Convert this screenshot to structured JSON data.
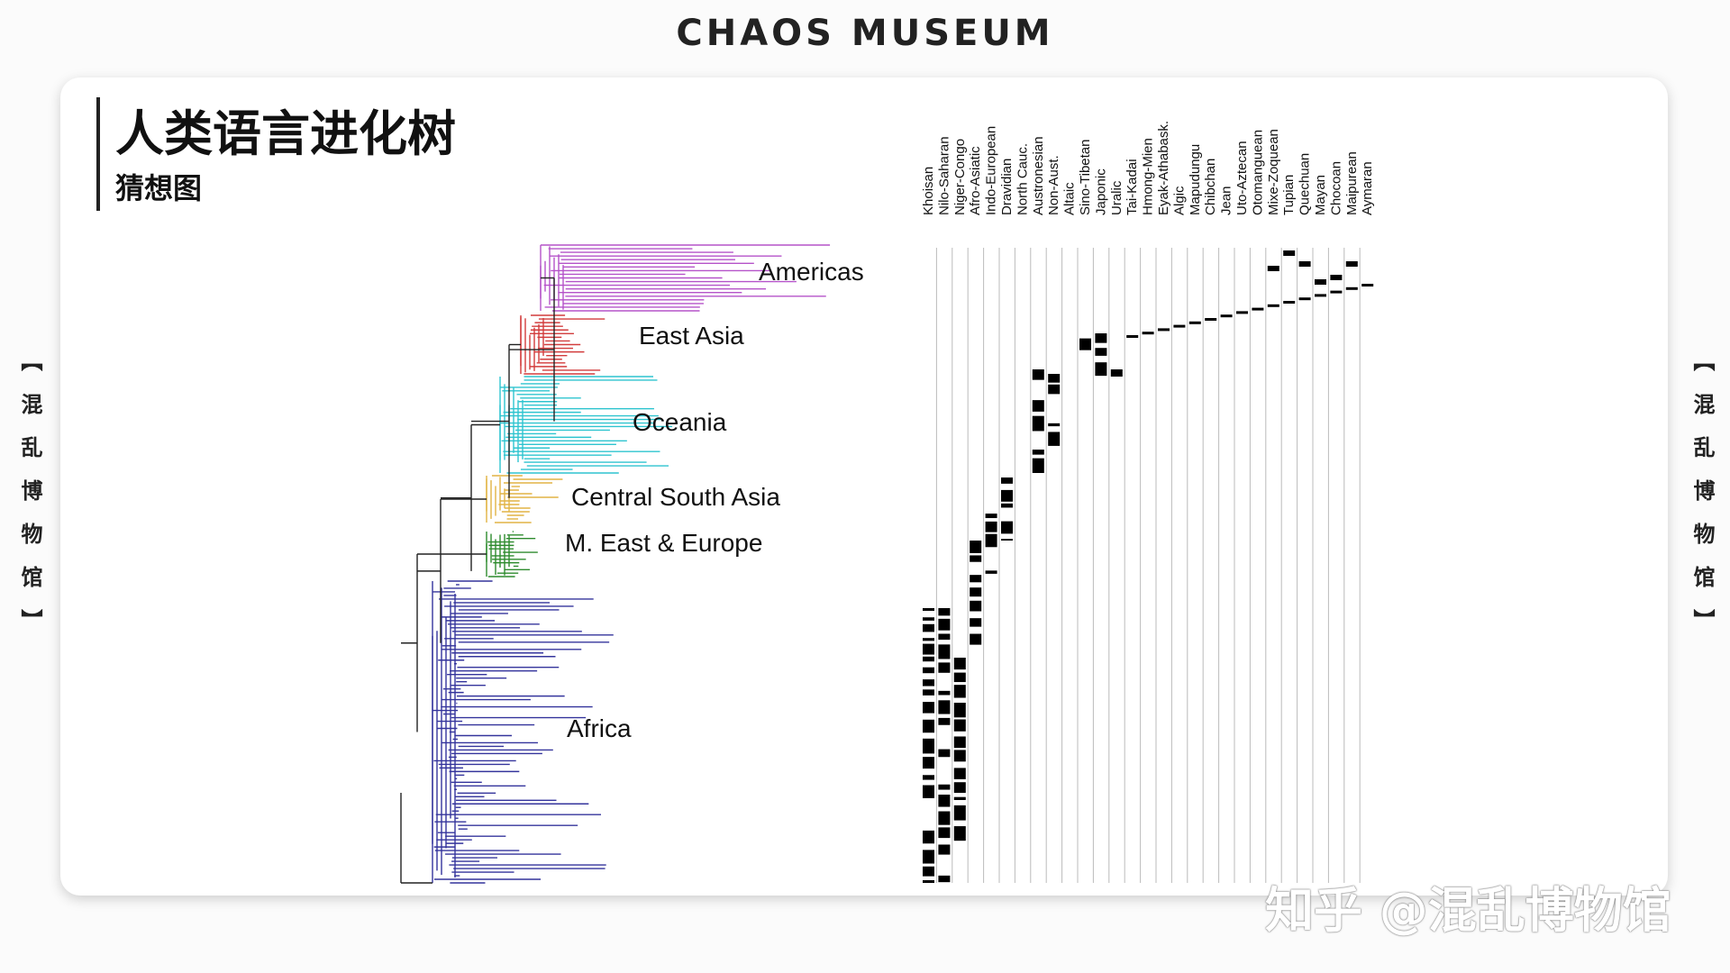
{
  "header": {
    "title": "CHAOS MUSEUM"
  },
  "slide": {
    "title": "人类语言进化树",
    "subtitle": "猜想图"
  },
  "side_label": "【混乱博物馆】",
  "tree": {
    "regions": [
      "Americas",
      "East Asia",
      "Oceania",
      "Central South Asia",
      "M. East & Europe",
      "Africa"
    ]
  },
  "matrix": {
    "columns": [
      "Khoisan",
      "Nilo-Saharan",
      "Niger-Congo",
      "Afro-Asiatic",
      "Indo-European",
      "Dravidian",
      "North Cauc.",
      "Austronesian",
      "Non-Aust.",
      "Altaic",
      "Sino-Tibetan",
      "Japonic",
      "Uralic",
      "Tai-Kadai",
      "Hmong-Mien",
      "Eyak-Athabask.",
      "Algic",
      "Mapudungu",
      "Chibchan",
      "Jean",
      "Uto-Aztecan",
      "Otomanguean",
      "Mixe-Zoquean",
      "Tupian",
      "Quechuan",
      "Mayan",
      "Chocoan",
      "Maipurean",
      "Aymaran"
    ]
  },
  "watermark": "知乎 @混乱博物馆"
}
